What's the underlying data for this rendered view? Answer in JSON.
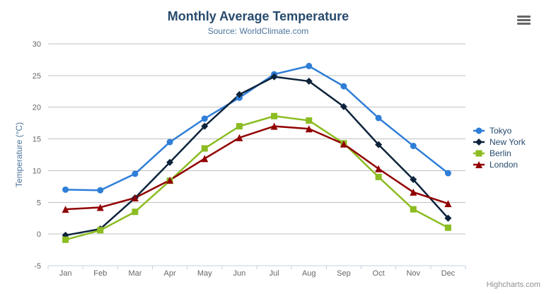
{
  "chart": {
    "credits": "Highcharts.com",
    "export_menu_icon": "hamburger-icon"
  },
  "chart_data": {
    "type": "line",
    "title": "Monthly Average Temperature",
    "subtitle": "Source: WorldClimate.com",
    "xlabel": "",
    "ylabel": "Temperature (°C)",
    "categories": [
      "Jan",
      "Feb",
      "Mar",
      "Apr",
      "May",
      "Jun",
      "Jul",
      "Aug",
      "Sep",
      "Oct",
      "Nov",
      "Dec"
    ],
    "ylim": [
      -5,
      30
    ],
    "yticks": [
      30,
      25,
      20,
      15,
      10,
      5,
      0,
      -5
    ],
    "grid": true,
    "legend_position": "right",
    "axis_line_color": "#C0D0E0",
    "grid_line_color": "#C0C0C0",
    "tick_label_color": "#666666",
    "series": [
      {
        "name": "Tokyo",
        "color": "#2f7ed8",
        "marker": "circle",
        "values": [
          7.0,
          6.9,
          9.5,
          14.5,
          18.2,
          21.5,
          25.2,
          26.5,
          23.3,
          18.3,
          13.9,
          9.6
        ]
      },
      {
        "name": "New York",
        "color": "#0d233a",
        "marker": "diamond",
        "values": [
          -0.2,
          0.8,
          5.7,
          11.3,
          17.0,
          22.0,
          24.8,
          24.1,
          20.1,
          14.1,
          8.6,
          2.5
        ]
      },
      {
        "name": "Berlin",
        "color": "#8bbc21",
        "marker": "square",
        "values": [
          -0.9,
          0.6,
          3.5,
          8.4,
          13.5,
          17.0,
          18.6,
          17.9,
          14.3,
          9.0,
          3.9,
          1.0
        ]
      },
      {
        "name": "London",
        "color": "#910000",
        "marker": "triangle",
        "values": [
          3.9,
          4.2,
          5.7,
          8.5,
          11.9,
          15.2,
          17.0,
          16.6,
          14.2,
          10.3,
          6.6,
          4.8
        ]
      }
    ]
  }
}
